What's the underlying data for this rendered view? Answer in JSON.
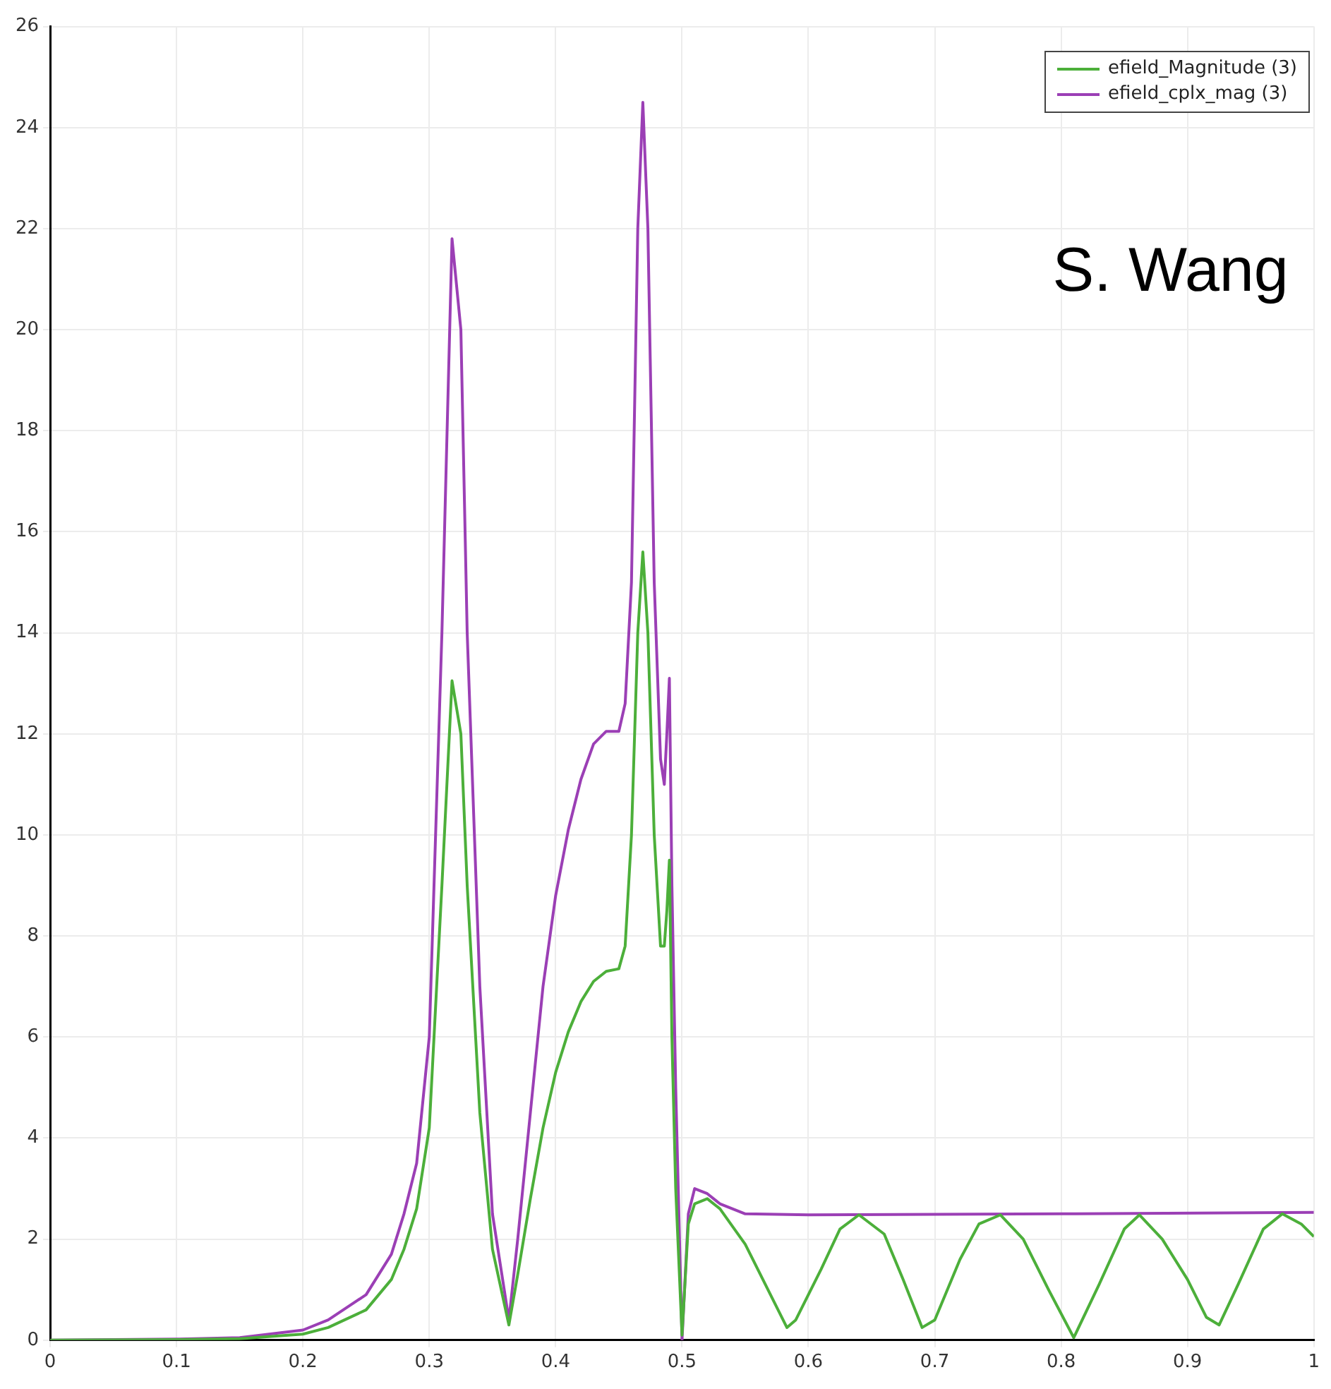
{
  "chart_data": {
    "type": "line",
    "xlim": [
      0,
      1
    ],
    "xticks": [
      0,
      0.1,
      0.2,
      0.3,
      0.4,
      0.5,
      0.6,
      0.7,
      0.8,
      0.9,
      1
    ],
    "ylim": [
      0,
      26
    ],
    "yticks": [
      0,
      2,
      4,
      6,
      8,
      10,
      12,
      14,
      16,
      18,
      20,
      22,
      24,
      26
    ],
    "grid": true,
    "legend": "top right",
    "marker": "none",
    "line_style": "solid",
    "annotations": [
      "S. Wang"
    ],
    "series": [
      {
        "name": "efield_Magnitude (3)",
        "color": "#4caf3a",
        "x": [
          0,
          0.1,
          0.15,
          0.2,
          0.22,
          0.25,
          0.27,
          0.28,
          0.29,
          0.3,
          0.31,
          0.318,
          0.325,
          0.33,
          0.34,
          0.35,
          0.363,
          0.37,
          0.38,
          0.39,
          0.4,
          0.41,
          0.42,
          0.43,
          0.44,
          0.45,
          0.455,
          0.46,
          0.465,
          0.469,
          0.473,
          0.478,
          0.483,
          0.486,
          0.488,
          0.49,
          0.492,
          0.495,
          0.5,
          0.505,
          0.51,
          0.52,
          0.53,
          0.55,
          0.57,
          0.583,
          0.59,
          0.61,
          0.625,
          0.64,
          0.66,
          0.675,
          0.69,
          0.7,
          0.72,
          0.735,
          0.752,
          0.77,
          0.79,
          0.81,
          0.83,
          0.85,
          0.862,
          0.88,
          0.9,
          0.915,
          0.925,
          0.94,
          0.96,
          0.975,
          0.99,
          1
        ],
        "values": [
          0,
          0.01,
          0.03,
          0.12,
          0.25,
          0.6,
          1.2,
          1.8,
          2.6,
          4.2,
          9,
          13.05,
          12,
          9,
          4.5,
          1.8,
          0.3,
          1.3,
          2.8,
          4.2,
          5.3,
          6.1,
          6.7,
          7.1,
          7.3,
          7.35,
          7.8,
          10,
          14,
          15.6,
          14,
          10,
          7.8,
          7.8,
          8.5,
          9.5,
          6,
          3,
          0.1,
          2.3,
          2.7,
          2.8,
          2.6,
          1.9,
          0.9,
          0.25,
          0.4,
          1.4,
          2.2,
          2.48,
          2.1,
          1.2,
          0.25,
          0.4,
          1.6,
          2.3,
          2.48,
          2,
          1,
          0.05,
          1.1,
          2.2,
          2.48,
          2,
          1.2,
          0.45,
          0.3,
          1.1,
          2.2,
          2.5,
          2.3,
          2.05
        ]
      },
      {
        "name": "efield_cplx_mag (3)",
        "color": "#9b3fb5",
        "x": [
          0,
          0.1,
          0.15,
          0.2,
          0.22,
          0.25,
          0.27,
          0.28,
          0.29,
          0.3,
          0.31,
          0.318,
          0.325,
          0.33,
          0.34,
          0.35,
          0.363,
          0.37,
          0.38,
          0.39,
          0.4,
          0.41,
          0.42,
          0.43,
          0.44,
          0.45,
          0.455,
          0.46,
          0.465,
          0.469,
          0.473,
          0.478,
          0.483,
          0.486,
          0.488,
          0.49,
          0.492,
          0.495,
          0.5,
          0.505,
          0.51,
          0.52,
          0.53,
          0.55,
          0.6,
          0.8,
          1
        ],
        "values": [
          0,
          0.02,
          0.05,
          0.2,
          0.4,
          0.9,
          1.7,
          2.5,
          3.5,
          6,
          14,
          21.8,
          20,
          14,
          7,
          2.5,
          0.4,
          2,
          4.5,
          7,
          8.8,
          10.1,
          11.1,
          11.8,
          12.05,
          12.05,
          12.6,
          15,
          22,
          24.5,
          22,
          15,
          11.5,
          11,
          12,
          13.1,
          9,
          5,
          0,
          2.5,
          3,
          2.9,
          2.7,
          2.5,
          2.48,
          2.5,
          2.53
        ]
      }
    ]
  }
}
